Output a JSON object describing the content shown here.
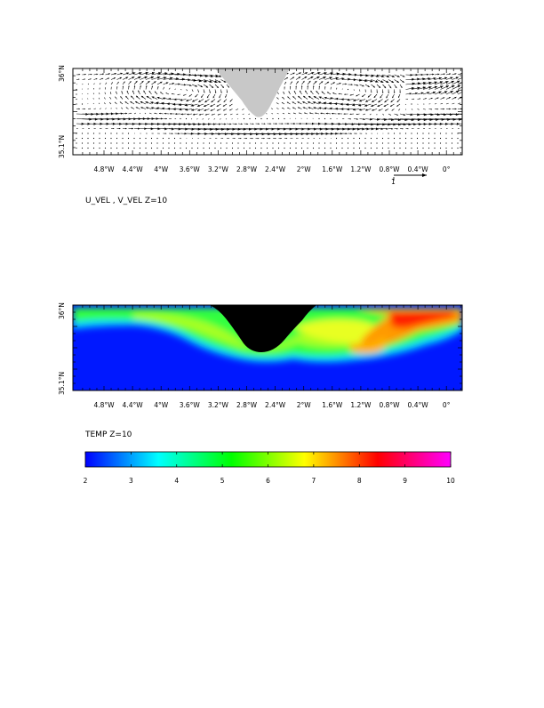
{
  "chart_data": [
    {
      "type": "vector_field",
      "caption": "U_VEL , V_VEL Z=10",
      "x_ticks": [
        "4.8°W",
        "4.4°W",
        "4°W",
        "3.6°W",
        "3.2°W",
        "2.8°W",
        "2.4°W",
        "2°W",
        "1.6°W",
        "1.2°W",
        "0.8°W",
        "0.4°W",
        "0°"
      ],
      "y_ticks": [
        "36°N",
        "35.1°N"
      ],
      "xlim": [
        -5.0,
        0.1
      ],
      "ylim": [
        35.1,
        36.0
      ],
      "reference_vector_label": "1",
      "land_color": "#c8c8c8"
    },
    {
      "type": "heatmap",
      "caption": "TEMP Z=10",
      "x_ticks": [
        "4.8°W",
        "4.4°W",
        "4°W",
        "3.6°W",
        "3.2°W",
        "2.8°W",
        "2.4°W",
        "2°W",
        "1.6°W",
        "1.2°W",
        "0.8°W",
        "0.4°W",
        "0°"
      ],
      "y_ticks": [
        "36°N",
        "35.1°N"
      ],
      "xlim": [
        -5.0,
        0.1
      ],
      "ylim": [
        35.1,
        36.0
      ],
      "colorbar": {
        "ticks": [
          "2",
          "3",
          "4",
          "5",
          "6",
          "7",
          "8",
          "9",
          "10"
        ],
        "range": [
          2,
          10
        ],
        "colors": [
          "#0000ff",
          "#00ffff",
          "#00ff00",
          "#ffff00",
          "#ff0000",
          "#ff00ff"
        ]
      },
      "land_color": "#000000"
    }
  ]
}
